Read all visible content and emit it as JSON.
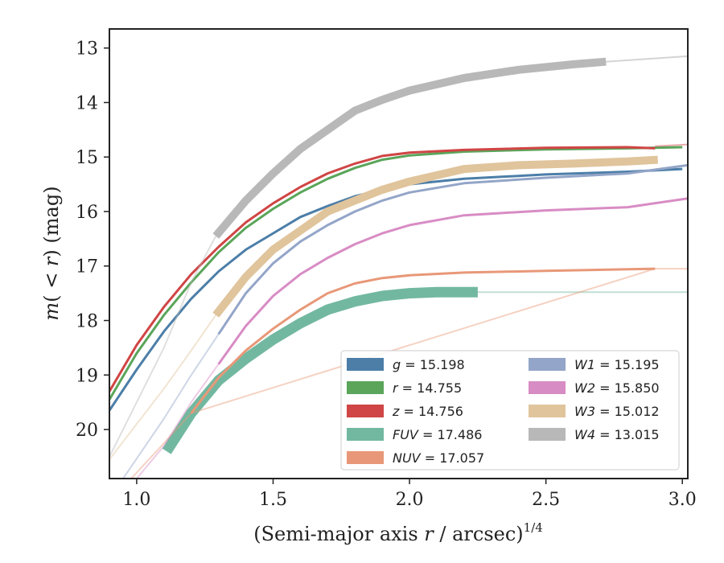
{
  "chart_data": {
    "type": "line",
    "title": "",
    "xlabel": "(Semi-major axis r / arcsec)",
    "xlabel_parts": {
      "prefix": "(Semi-major axis ",
      "var": "r",
      "suffix": " / arcsec)",
      "sup": "1/4"
    },
    "ylabel": "m(<r) (mag)",
    "ylabel_parts": {
      "m": "m",
      "open": "(",
      "lt": " < ",
      "r": "r",
      "close": ")",
      "unit": " (mag)"
    },
    "xlim": [
      0.9,
      3.02
    ],
    "ylim": [
      20.9,
      12.65
    ],
    "y_inverted": true,
    "xticks": [
      1.0,
      1.5,
      2.0,
      2.5,
      3.0
    ],
    "xtick_labels": [
      "1.0",
      "1.5",
      "2.0",
      "2.5",
      "3.0"
    ],
    "yticks": [
      13,
      14,
      15,
      16,
      17,
      18,
      19,
      20
    ],
    "ytick_labels": [
      "13",
      "14",
      "15",
      "16",
      "17",
      "18",
      "19",
      "20"
    ],
    "grid": false,
    "legend_placement": "lower-right",
    "legend_columns": 2,
    "series": [
      {
        "name": "g",
        "label": "15.198",
        "color": "#4c7ea8",
        "data_range": [
          0.9,
          3.02
        ],
        "width": 3,
        "points": [
          [
            0.9,
            19.65
          ],
          [
            1.0,
            18.9
          ],
          [
            1.1,
            18.2
          ],
          [
            1.2,
            17.6
          ],
          [
            1.3,
            17.1
          ],
          [
            1.4,
            16.7
          ],
          [
            1.5,
            16.4
          ],
          [
            1.6,
            16.1
          ],
          [
            1.7,
            15.9
          ],
          [
            1.8,
            15.72
          ],
          [
            1.9,
            15.6
          ],
          [
            2.0,
            15.5
          ],
          [
            2.2,
            15.4
          ],
          [
            2.5,
            15.32
          ],
          [
            2.8,
            15.27
          ],
          [
            3.0,
            15.22
          ]
        ],
        "faint_points": []
      },
      {
        "name": "r",
        "label": "14.755",
        "color": "#5aa55a",
        "data_range": [
          0.9,
          3.02
        ],
        "width": 3,
        "points": [
          [
            0.9,
            19.45
          ],
          [
            1.0,
            18.6
          ],
          [
            1.1,
            17.9
          ],
          [
            1.2,
            17.3
          ],
          [
            1.3,
            16.75
          ],
          [
            1.4,
            16.3
          ],
          [
            1.5,
            15.95
          ],
          [
            1.6,
            15.65
          ],
          [
            1.7,
            15.4
          ],
          [
            1.8,
            15.2
          ],
          [
            1.9,
            15.05
          ],
          [
            2.0,
            14.97
          ],
          [
            2.2,
            14.9
          ],
          [
            2.5,
            14.86
          ],
          [
            2.8,
            14.84
          ],
          [
            3.0,
            14.82
          ]
        ],
        "faint_points": []
      },
      {
        "name": "z",
        "label": "14.756",
        "color": "#d04545",
        "data_range": [
          0.9,
          3.02
        ],
        "width": 3,
        "points": [
          [
            0.9,
            19.3
          ],
          [
            1.0,
            18.45
          ],
          [
            1.1,
            17.75
          ],
          [
            1.2,
            17.15
          ],
          [
            1.3,
            16.65
          ],
          [
            1.4,
            16.2
          ],
          [
            1.5,
            15.85
          ],
          [
            1.6,
            15.55
          ],
          [
            1.7,
            15.3
          ],
          [
            1.8,
            15.12
          ],
          [
            1.9,
            14.98
          ],
          [
            2.0,
            14.92
          ],
          [
            2.2,
            14.87
          ],
          [
            2.5,
            14.83
          ],
          [
            2.8,
            14.82
          ],
          [
            2.9,
            14.84
          ]
        ],
        "faint_points": [
          [
            2.9,
            14.8
          ],
          [
            3.02,
            14.77
          ]
        ]
      },
      {
        "name": "FUV",
        "label": "17.486",
        "color": "#72b8a0",
        "data_range": [
          1.1,
          2.25
        ],
        "width": 13,
        "points": [
          [
            1.11,
            20.4
          ],
          [
            1.2,
            19.7
          ],
          [
            1.3,
            19.1
          ],
          [
            1.4,
            18.7
          ],
          [
            1.5,
            18.35
          ],
          [
            1.6,
            18.05
          ],
          [
            1.7,
            17.8
          ],
          [
            1.8,
            17.65
          ],
          [
            1.9,
            17.55
          ],
          [
            2.0,
            17.5
          ],
          [
            2.1,
            17.48
          ],
          [
            2.25,
            17.48
          ]
        ],
        "faint_points": [
          [
            2.25,
            17.48
          ],
          [
            3.02,
            17.48
          ]
        ]
      },
      {
        "name": "NUV",
        "label": "17.057",
        "color": "#e89878",
        "data_range": [
          0.9,
          3.02
        ],
        "width": 3,
        "points": [
          [
            1.2,
            19.7
          ],
          [
            1.3,
            19.05
          ],
          [
            1.4,
            18.55
          ],
          [
            1.5,
            18.15
          ],
          [
            1.6,
            17.8
          ],
          [
            1.7,
            17.5
          ],
          [
            1.8,
            17.32
          ],
          [
            1.9,
            17.22
          ],
          [
            2.0,
            17.17
          ],
          [
            2.2,
            17.12
          ],
          [
            2.5,
            17.09
          ],
          [
            2.9,
            17.05
          ]
        ],
        "faint_points": [
          [
            0.98,
            20.9
          ],
          [
            1.1,
            20.25
          ],
          [
            1.2,
            19.7
          ],
          [
            2.9,
            17.05
          ],
          [
            3.02,
            17.05
          ]
        ]
      },
      {
        "name": "W1",
        "label": "15.195",
        "color": "#93a5c8",
        "data_range": [
          1.3,
          3.02
        ],
        "width": 3,
        "points": [
          [
            1.3,
            18.25
          ],
          [
            1.4,
            17.5
          ],
          [
            1.5,
            16.95
          ],
          [
            1.6,
            16.55
          ],
          [
            1.7,
            16.25
          ],
          [
            1.8,
            16.0
          ],
          [
            1.9,
            15.8
          ],
          [
            2.0,
            15.65
          ],
          [
            2.2,
            15.48
          ],
          [
            2.5,
            15.38
          ],
          [
            2.8,
            15.3
          ],
          [
            3.02,
            15.15
          ]
        ],
        "faint_points": [
          [
            0.95,
            20.9
          ],
          [
            1.1,
            19.8
          ],
          [
            1.2,
            19.0
          ],
          [
            1.3,
            18.25
          ]
        ]
      },
      {
        "name": "W2",
        "label": "15.850",
        "color": "#d88cc4",
        "data_range": [
          1.3,
          3.02
        ],
        "width": 3,
        "points": [
          [
            1.3,
            18.8
          ],
          [
            1.4,
            18.1
          ],
          [
            1.5,
            17.55
          ],
          [
            1.6,
            17.15
          ],
          [
            1.7,
            16.85
          ],
          [
            1.8,
            16.6
          ],
          [
            1.9,
            16.4
          ],
          [
            2.0,
            16.25
          ],
          [
            2.2,
            16.07
          ],
          [
            2.5,
            15.98
          ],
          [
            2.8,
            15.92
          ],
          [
            3.02,
            15.76
          ]
        ],
        "faint_points": [
          [
            1.0,
            20.9
          ],
          [
            1.1,
            20.3
          ],
          [
            1.2,
            19.5
          ],
          [
            1.3,
            18.8
          ]
        ]
      },
      {
        "name": "W3",
        "label": "15.012",
        "color": "#e0c49c",
        "data_range": [
          1.29,
          2.91
        ],
        "width": 10,
        "points": [
          [
            1.29,
            17.9
          ],
          [
            1.4,
            17.2
          ],
          [
            1.5,
            16.7
          ],
          [
            1.6,
            16.35
          ],
          [
            1.7,
            16.0
          ],
          [
            1.8,
            15.8
          ],
          [
            1.9,
            15.6
          ],
          [
            2.0,
            15.45
          ],
          [
            2.2,
            15.22
          ],
          [
            2.4,
            15.15
          ],
          [
            2.6,
            15.12
          ],
          [
            2.8,
            15.08
          ],
          [
            2.91,
            15.05
          ]
        ],
        "faint_points": [
          [
            0.9,
            20.55
          ],
          [
            1.0,
            19.9
          ],
          [
            1.1,
            19.25
          ],
          [
            1.2,
            18.55
          ],
          [
            1.29,
            17.9
          ]
        ]
      },
      {
        "name": "W4",
        "label": "13.015",
        "color": "#b8b8b8",
        "data_range": [
          1.29,
          2.72
        ],
        "width": 10,
        "points": [
          [
            1.29,
            16.45
          ],
          [
            1.4,
            15.8
          ],
          [
            1.5,
            15.3
          ],
          [
            1.6,
            14.85
          ],
          [
            1.7,
            14.5
          ],
          [
            1.8,
            14.15
          ],
          [
            1.9,
            13.95
          ],
          [
            2.0,
            13.78
          ],
          [
            2.2,
            13.55
          ],
          [
            2.4,
            13.4
          ],
          [
            2.6,
            13.3
          ],
          [
            2.72,
            13.25
          ]
        ],
        "faint_points": [
          [
            0.9,
            20.5
          ],
          [
            1.0,
            19.5
          ],
          [
            1.1,
            18.5
          ],
          [
            1.2,
            17.3
          ],
          [
            1.29,
            16.45
          ]
        ],
        "tail_points": [
          [
            2.72,
            13.25
          ],
          [
            3.02,
            13.15
          ]
        ]
      }
    ]
  }
}
